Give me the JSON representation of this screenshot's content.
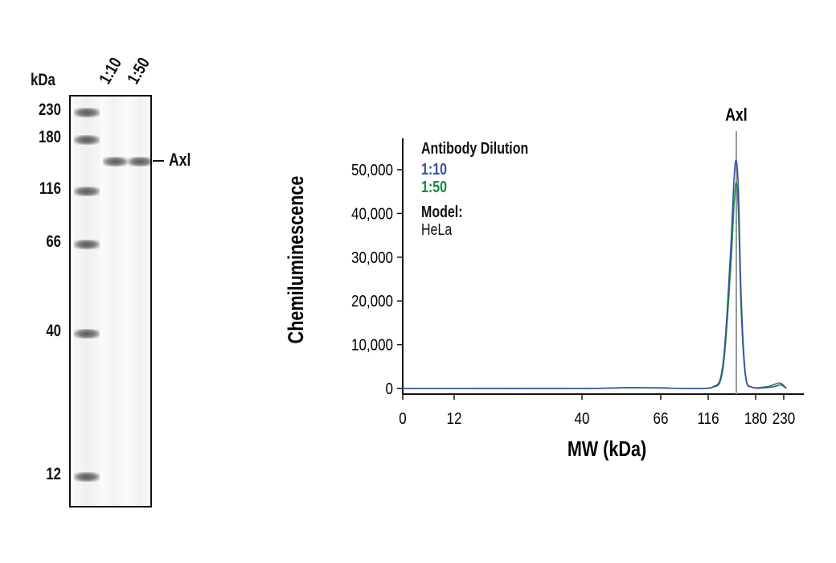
{
  "blot": {
    "unit_label": "kDa",
    "ladder": [
      {
        "label": "230",
        "band": true
      },
      {
        "label": "180",
        "band": true
      },
      {
        "label": "116",
        "band": true
      },
      {
        "label": "66",
        "band": true
      },
      {
        "label": "40",
        "band": true
      },
      {
        "label": "12",
        "band": true
      }
    ],
    "lanes": [
      {
        "label": "1:10"
      },
      {
        "label": "1:50"
      }
    ],
    "target_label": "Axl"
  },
  "chart_data": {
    "type": "line",
    "title": "",
    "xlabel": "MW (kDa)",
    "ylabel": "Chemiluminescence",
    "x_scale": "log-ladder",
    "x_ticks": [
      "0",
      "12",
      "40",
      "66",
      "116",
      "180",
      "230"
    ],
    "ylim": [
      0,
      56000
    ],
    "y_ticks": [
      "0",
      "10,000",
      "20,000",
      "30,000",
      "40,000",
      "50,000"
    ],
    "grid": false,
    "peak_marker": {
      "label": "Axl",
      "x_kda": 153
    },
    "legend": {
      "title": "Antibody Dilution",
      "placement": "top-left",
      "entries": [
        {
          "name": "1:10",
          "color": "#3a4fa8"
        },
        {
          "name": "1:50",
          "color": "#1a8a3e"
        }
      ],
      "model_label": "Model:",
      "model_value": "HeLa"
    },
    "series": [
      {
        "name": "1:10",
        "color": "#3a4fa8",
        "points": [
          [
            0,
            0
          ],
          [
            12,
            0
          ],
          [
            40,
            0
          ],
          [
            55,
            200
          ],
          [
            66,
            150
          ],
          [
            90,
            0
          ],
          [
            120,
            200
          ],
          [
            135,
            5000
          ],
          [
            145,
            30000
          ],
          [
            150,
            48000
          ],
          [
            153,
            52000
          ],
          [
            156,
            45000
          ],
          [
            160,
            20000
          ],
          [
            166,
            3000
          ],
          [
            175,
            300
          ],
          [
            200,
            200
          ],
          [
            215,
            500
          ],
          [
            225,
            800
          ],
          [
            235,
            0
          ]
        ]
      },
      {
        "name": "1:50",
        "color": "#1a8a3e",
        "points": [
          [
            0,
            0
          ],
          [
            12,
            0
          ],
          [
            40,
            0
          ],
          [
            55,
            150
          ],
          [
            66,
            100
          ],
          [
            90,
            0
          ],
          [
            120,
            150
          ],
          [
            135,
            4000
          ],
          [
            145,
            26000
          ],
          [
            150,
            42000
          ],
          [
            153,
            47000
          ],
          [
            156,
            40000
          ],
          [
            160,
            17000
          ],
          [
            166,
            2500
          ],
          [
            175,
            300
          ],
          [
            200,
            400
          ],
          [
            215,
            1000
          ],
          [
            225,
            1200
          ],
          [
            235,
            0
          ]
        ]
      }
    ]
  }
}
